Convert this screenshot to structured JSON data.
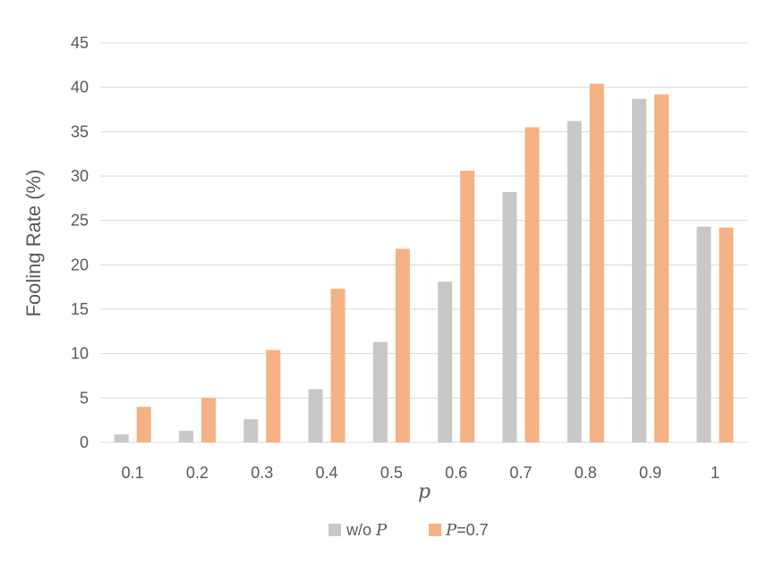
{
  "chart_data": {
    "type": "bar",
    "title": "",
    "xlabel": "p",
    "ylabel": "Fooling Rate (%)",
    "ylim": [
      0,
      45
    ],
    "yticks": [
      0,
      5,
      10,
      15,
      20,
      25,
      30,
      35,
      40,
      45
    ],
    "grid": true,
    "legend_position": "bottom",
    "categories": [
      "0.1",
      "0.2",
      "0.3",
      "0.4",
      "0.5",
      "0.6",
      "0.7",
      "0.8",
      "0.9",
      "1"
    ],
    "series": [
      {
        "name": "w/o P",
        "legend_text": "w/o ",
        "legend_italic": "P",
        "color": "#c8c8c8",
        "values": [
          0.9,
          1.3,
          2.6,
          6.0,
          11.3,
          18.1,
          28.2,
          36.2,
          38.7,
          24.3
        ]
      },
      {
        "name": "P=0.7",
        "legend_italic": "P",
        "legend_text": "=0.7",
        "color": "#f4b183",
        "values": [
          4.0,
          5.0,
          10.4,
          17.3,
          21.8,
          30.6,
          35.5,
          40.4,
          39.2,
          24.2
        ]
      }
    ]
  }
}
